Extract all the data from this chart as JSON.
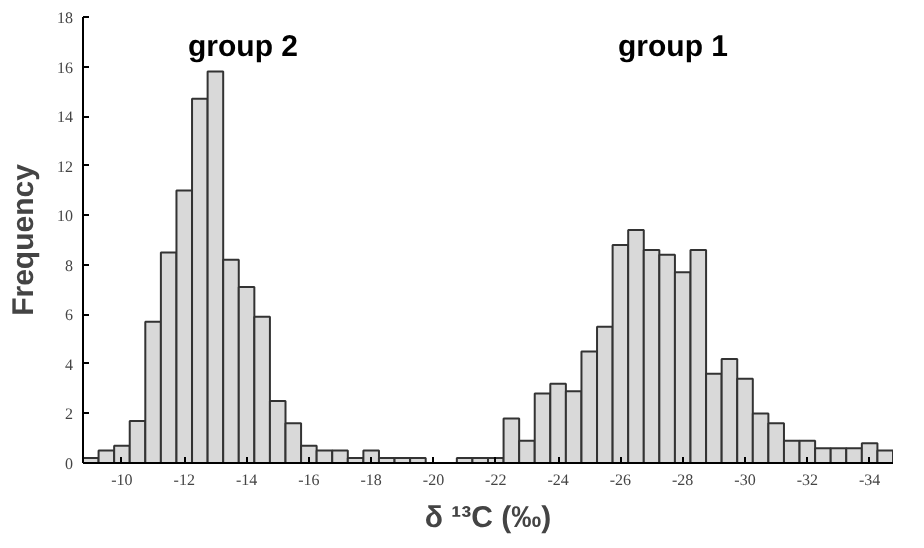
{
  "chart_data": {
    "type": "histogram",
    "xlabel": "δ ¹³C (‰)",
    "ylabel": "Frequency",
    "color": "#d9d9d9",
    "bins": [
      -8.75,
      -9.25,
      -9.75,
      -10.25,
      -10.75,
      -11.25,
      -11.75,
      -12.25,
      -12.75,
      -13.25,
      -13.75,
      -14.25,
      -14.75,
      -15.25,
      -15.75,
      -16.25,
      -16.75,
      -17.25,
      -17.75,
      -18.25,
      -18.75,
      -19.25,
      -19.75,
      -20.25,
      -20.75,
      -21.25,
      -21.75,
      -22.25,
      -22.75,
      -23.25,
      -23.75,
      -24.25,
      -24.75,
      -25.25,
      -25.75,
      -26.25,
      -26.75,
      -27.25,
      -27.75,
      -28.25,
      -28.75,
      -29.25,
      -29.75,
      -30.25,
      -30.75,
      -31.25,
      -31.75,
      -32.25,
      -32.75,
      -33.25,
      -33.75,
      -34.25,
      -34.75
    ],
    "values": [
      0.2,
      0.5,
      0.7,
      1.7,
      5.7,
      8.5,
      11.0,
      14.7,
      15.8,
      8.2,
      7.1,
      5.9,
      2.5,
      1.6,
      0.7,
      0.5,
      0.5,
      0.2,
      0.5,
      0.2,
      0.2,
      0.2,
      0,
      0,
      0.2,
      0.2,
      0.2,
      1.8,
      0.9,
      2.8,
      3.2,
      2.9,
      4.5,
      5.5,
      8.8,
      9.4,
      8.6,
      8.4,
      7.7,
      8.6,
      3.6,
      4.2,
      3.4,
      2.0,
      1.6,
      0.9,
      0.9,
      0.6,
      0.6,
      0.6,
      0.8,
      0.5
    ],
    "xlim": [
      -8.75,
      -34.75
    ],
    "xticks": [
      -10,
      -12,
      -14,
      -16,
      -18,
      -20,
      -22,
      -24,
      -26,
      -28,
      -30,
      -32,
      -34
    ],
    "ylim": [
      0,
      18
    ],
    "yticks": [
      0,
      2,
      4,
      6,
      8,
      10,
      12,
      14,
      16,
      18
    ],
    "annotations": [
      "group 2",
      "group 1"
    ],
    "grid": false
  }
}
